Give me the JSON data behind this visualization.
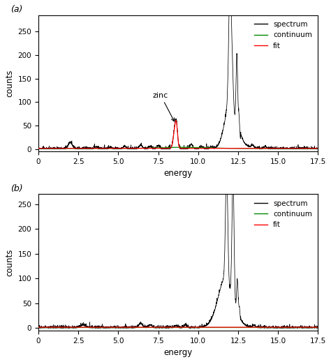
{
  "xlim": [
    0,
    17.5
  ],
  "ylim_a": [
    -5,
    285
  ],
  "ylim_b": [
    -5,
    270
  ],
  "xticks": [
    0,
    2.5,
    5.0,
    7.5,
    10.0,
    12.5,
    15.0,
    17.5
  ],
  "yticks_a": [
    0,
    50,
    100,
    150,
    200,
    250
  ],
  "yticks_b": [
    0,
    50,
    100,
    150,
    200,
    250
  ],
  "xlabel": "energy",
  "ylabel": "counts",
  "label_a": "(a)",
  "label_b": "(b)",
  "legend_labels": [
    "spectrum",
    "continuum",
    "fit"
  ],
  "legend_colors": [
    "black",
    "#008800",
    "red"
  ],
  "zinc_label": "zinc",
  "bg_color": "#ffffff",
  "noise_seed_a": 42,
  "noise_seed_b": 99
}
